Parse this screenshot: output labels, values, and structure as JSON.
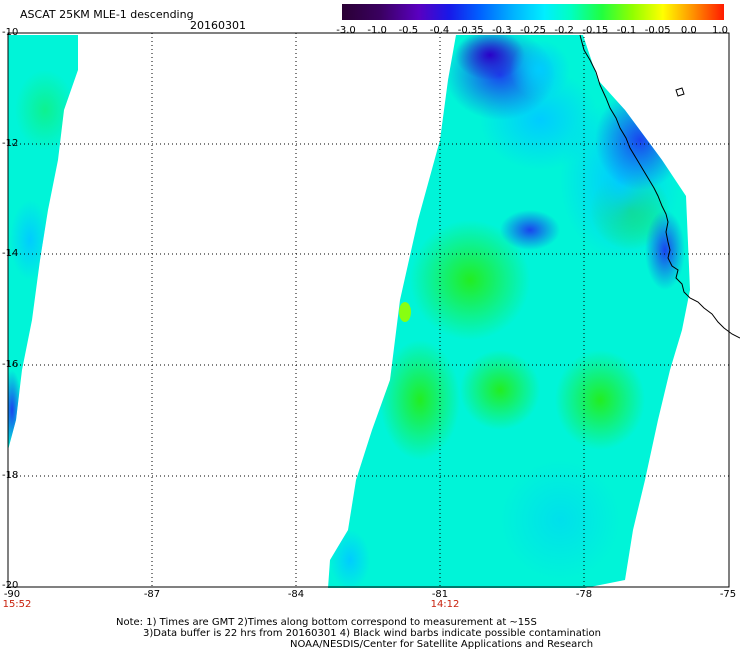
{
  "header": {
    "title": "ASCAT 25KM MLE-1 descending",
    "date": "20160301"
  },
  "colorbar": {
    "ticks": [
      "-3.0",
      "-1.0",
      "-0.5",
      "-0.4",
      "-0.35",
      "-0.3",
      "-0.25",
      "-0.2",
      "-0.15",
      "-0.1",
      "-0.05",
      "0.0",
      "1.0"
    ],
    "colors": [
      "#3a0050",
      "#2a0a6a",
      "#5000b0",
      "#1e1ee0",
      "#0066ff",
      "#00aaff",
      "#00eeff",
      "#00ffc8",
      "#22ff44",
      "#88ff00",
      "#ffff00",
      "#ff8800",
      "#ff2200"
    ]
  },
  "axes": {
    "lat_labels": [
      "-10",
      "-12",
      "-14",
      "-16",
      "-18",
      "-20"
    ],
    "lon_labels": [
      "-90",
      "-87",
      "-84",
      "-81",
      "-78",
      "-75"
    ],
    "time_labels": [
      "15:52",
      "14:12"
    ]
  },
  "notes": {
    "line1": "Note: 1) Times are GMT 2)Times along bottom correspond to measurement at ~15S",
    "line2": "3)Data buffer is 22 hrs from 20160301 4) Black wind barbs indicate possible contamination",
    "line3": "NOAA/NESDIS/Center for Satellite Applications and Research"
  }
}
